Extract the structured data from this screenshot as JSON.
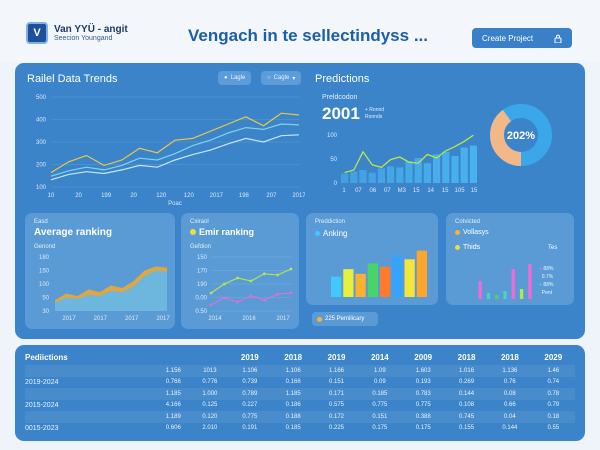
{
  "header": {
    "logo_mark": "V",
    "logo_name": "Van YYÜ - angit",
    "logo_sub": "Seecion Youngand",
    "title": "Vengach in te sellectindyss ...",
    "create_button": "Create Project"
  },
  "trends": {
    "title": "Railel Data Trends",
    "filter_a": "Lagle",
    "filter_b": "Cagle",
    "y_ticks": [
      "500",
      "400",
      "300",
      "200",
      "100"
    ],
    "x_ticks": [
      "10",
      "20",
      "199",
      "20",
      "120",
      "120",
      "2017",
      "198",
      "207",
      "2017"
    ],
    "x_caption": "Poac",
    "chart_data": {
      "type": "line",
      "series": [
        {
          "values": [
            80,
            140,
            175,
            120,
            150,
            215,
            190,
            260,
            270,
            310,
            350,
            390,
            340,
            410,
            400
          ]
        },
        {
          "values": [
            60,
            90,
            110,
            95,
            120,
            160,
            150,
            185,
            230,
            260,
            300,
            330,
            320,
            350,
            345
          ]
        },
        {
          "values": [
            40,
            70,
            85,
            75,
            95,
            120,
            110,
            150,
            180,
            205,
            240,
            270,
            250,
            285,
            290
          ]
        }
      ],
      "colors": [
        "#e6c74a",
        "#7fd3e8",
        "#c7e6f5"
      ],
      "ylim": [
        0,
        500
      ]
    }
  },
  "predictions": {
    "title": "Predictions",
    "sub_label": "Preldcodon",
    "big_number": "2001",
    "note_a": "+ Ronnd",
    "note_b": "Ronnds",
    "donut_label": "202%",
    "y_ticks": [
      "100",
      "50",
      "0"
    ],
    "x_ticks": [
      "1",
      "07",
      "06",
      "07",
      "M3",
      "15",
      "14",
      "15",
      "105",
      "15"
    ],
    "chart_data": {
      "type": "bar",
      "values": [
        18,
        22,
        25,
        20,
        28,
        32,
        30,
        42,
        48,
        38,
        55,
        60,
        52,
        68,
        72
      ],
      "line": [
        20,
        25,
        60,
        35,
        30,
        45,
        50,
        40,
        38,
        55,
        48,
        62,
        70,
        80,
        92
      ],
      "donut": [
        0.4,
        0.6
      ],
      "colors": [
        "#4ab3ef",
        "#b8e64a",
        "#f2b887",
        "#3aa7ea"
      ],
      "ylim": [
        0,
        100
      ]
    }
  },
  "avg": {
    "eyebrow": "Easd",
    "title": "Average ranking",
    "sub": "Genond",
    "y_ticks": [
      "180",
      "150",
      "100",
      "50",
      "30"
    ],
    "x_ticks": [
      "2017",
      "2017",
      "2017",
      "2017"
    ],
    "chart_data": {
      "type": "area",
      "series": [
        {
          "values": [
            40,
            65,
            55,
            80,
            70,
            95,
            85,
            110,
            150,
            165,
            160
          ]
        },
        {
          "values": [
            30,
            50,
            45,
            60,
            55,
            75,
            70,
            90,
            130,
            150,
            145
          ]
        }
      ],
      "colors": [
        "#e6a83a",
        "#66b6e6"
      ],
      "ylim": [
        0,
        200
      ]
    }
  },
  "emir": {
    "eyebrow": "Cxiraol",
    "title": "Emir ranking",
    "sub": "Gefdion",
    "y_ticks": [
      "150",
      "170",
      "190",
      "0.00",
      "0.50"
    ],
    "x_ticks": [
      "2014",
      "2016",
      "2017"
    ],
    "chart_data": {
      "type": "line",
      "series": [
        {
          "values": [
            30,
            45,
            55,
            50,
            62,
            60,
            70
          ]
        },
        {
          "values": [
            10,
            22,
            15,
            25,
            18,
            28,
            30
          ]
        }
      ],
      "colors": [
        "#b8e64a",
        "#e46fd0"
      ],
      "ylim": [
        0,
        90
      ]
    }
  },
  "anking": {
    "eyebrow": "Preddiction",
    "title": "Anking",
    "badge": "225 Pemilicary",
    "chart_data": {
      "type": "bar",
      "values": [
        35,
        48,
        40,
        58,
        52,
        72,
        65,
        80
      ],
      "colors": [
        "#43c7ff",
        "#e8f03d",
        "#ffb02e",
        "#49d46a",
        "#ff7a2a",
        "#36a3ff",
        "#f5e43a",
        "#ffa52a"
      ],
      "ylim": [
        0,
        100
      ]
    }
  },
  "volleys": {
    "eyebrow": "Cotvicted",
    "title": "Vollasys",
    "subtitle": "Thids",
    "right_label": "Tes",
    "legend_a": "88%",
    "legend_b": "0.7%",
    "legend_c": "88%",
    "legend_d": "Pent",
    "chart_data": {
      "type": "bar",
      "values": [
        18,
        6,
        4,
        8,
        30,
        10,
        35
      ],
      "colors": [
        "#f06bd6",
        "#4fd1c0",
        "#49d46a",
        "#4fd1c0",
        "#f06bd6",
        "#b8e64a",
        "#f06bd6"
      ],
      "ylim": [
        0,
        40
      ]
    }
  },
  "table": {
    "title": "Pediictions",
    "headers": [
      "2019",
      "2018",
      "2019",
      "2014",
      "2009",
      "2018",
      "2018",
      "2029"
    ],
    "rows": [
      {
        "label": "",
        "cells": [
          "1.156",
          "1013",
          "1.106",
          "1.106",
          "1.166",
          "1.09",
          "1.603",
          "1.016",
          "1.136",
          "1.46"
        ]
      },
      {
        "label": "2019-2024",
        "cells": [
          "0.766",
          "0.776",
          "0.739",
          "0.166",
          "0.151",
          "0.09",
          "0.193",
          "0.269",
          "0.76",
          "0.74"
        ]
      },
      {
        "label": "",
        "cells": [
          "1.185",
          "1.000",
          "0.789",
          "1.185",
          "0.171",
          "0.185",
          "0.783",
          "0.144",
          "0.08",
          "0.78"
        ]
      },
      {
        "label": "2015-2024",
        "cells": [
          "4.166",
          "0.125",
          "0.227",
          "0.186",
          "0.575",
          "0.775",
          "0.775",
          "0.108",
          "0.66",
          "0.79"
        ]
      },
      {
        "label": "",
        "cells": [
          "1.189",
          "0.120",
          "0.775",
          "0.188",
          "0.172",
          "0.151",
          "0.388",
          "0.745",
          "0.04",
          "0.18"
        ]
      },
      {
        "label": "0015-2023",
        "cells": [
          "0.606",
          "2.010",
          "0.191",
          "0.185",
          "0.225",
          "0.175",
          "0.175",
          "0.155",
          "0.144",
          "0.55"
        ]
      }
    ]
  }
}
